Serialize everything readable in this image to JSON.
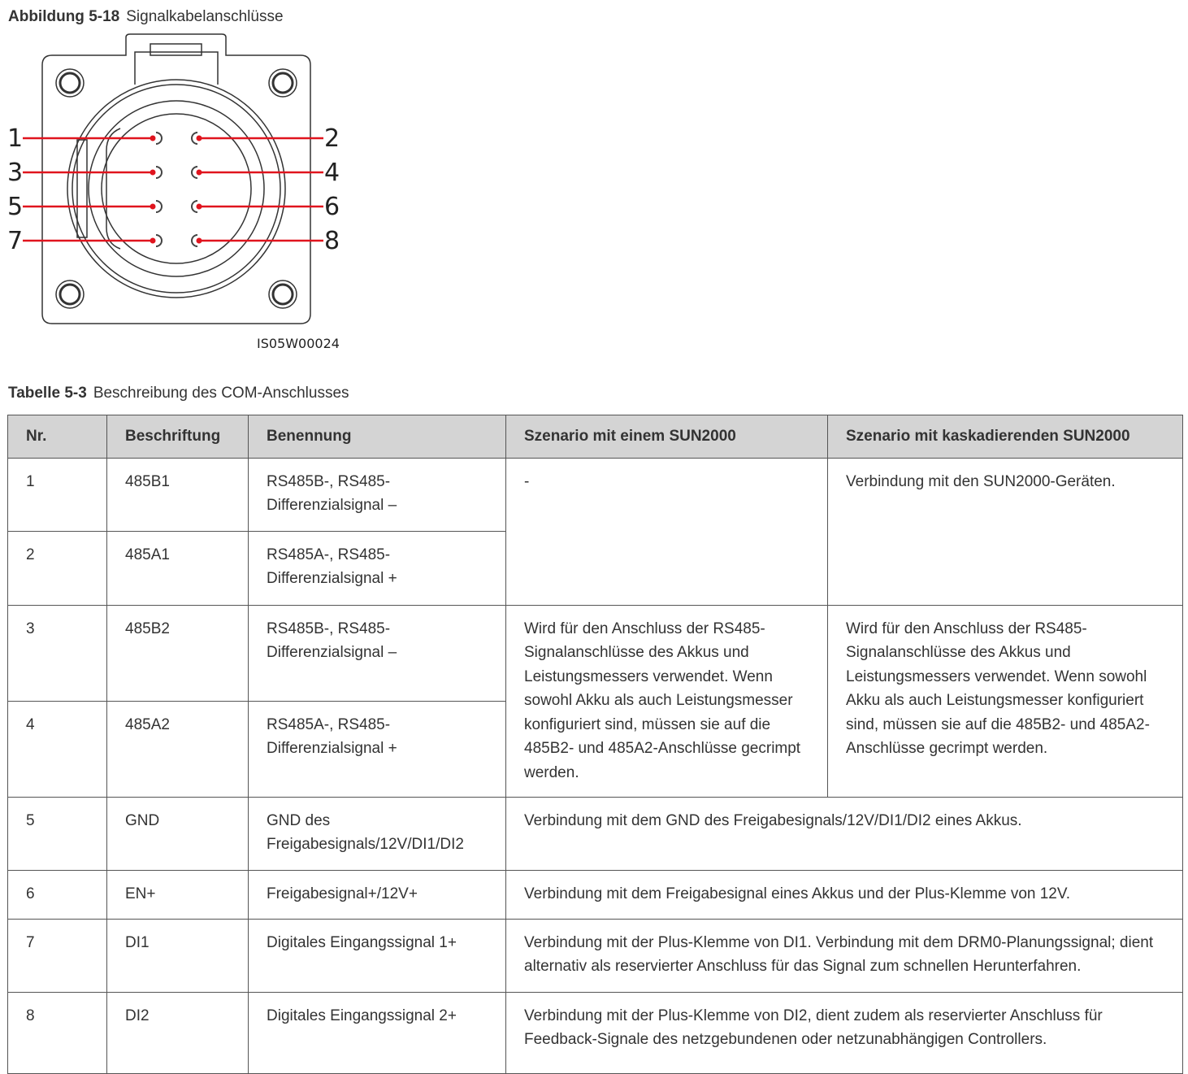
{
  "figure": {
    "label": "Abbildung 5-18",
    "title": "Signalkabelanschlüsse",
    "code": "IS05W00024",
    "pins_left": [
      "1",
      "3",
      "5",
      "7"
    ],
    "pins_right": [
      "2",
      "4",
      "6",
      "8"
    ],
    "line_color": "#e0141e"
  },
  "table": {
    "label": "Tabelle 5-3",
    "title": "Beschreibung des COM-Anschlusses",
    "headers": [
      "Nr.",
      "Beschriftung",
      "Benennung",
      "Szenario mit einem SUN2000",
      "Szenario mit kaskadierenden SUN2000"
    ],
    "rows": [
      {
        "nr": "1",
        "label": "485B1",
        "name": "RS485B-, RS485-Differenzialsignal –"
      },
      {
        "nr": "2",
        "label": "485A1",
        "name": "RS485A-, RS485-Differenzialsignal +"
      },
      {
        "nr": "3",
        "label": "485B2",
        "name": "RS485B-, RS485-Differenzialsignal –"
      },
      {
        "nr": "4",
        "label": "485A2",
        "name": "RS485A-, RS485-Differenzialsignal +"
      },
      {
        "nr": "5",
        "label": "GND",
        "name": "GND des Freigabesignals/12V/DI1/DI2"
      },
      {
        "nr": "6",
        "label": "EN+",
        "name": "Freigabesignal+/12V+"
      },
      {
        "nr": "7",
        "label": "DI1",
        "name": "Digitales Eingangssignal 1+"
      },
      {
        "nr": "8",
        "label": "DI2",
        "name": "Digitales Eingangssignal 2+"
      }
    ],
    "scenario": {
      "r12_single": "-",
      "r12_cascade": "Verbindung mit den SUN2000-Geräten.",
      "r34_single": "Wird für den Anschluss der RS485-Signalanschlüsse des Akkus und Leistungsmessers verwendet. Wenn sowohl Akku als auch Leistungsmesser konfiguriert sind, müssen sie auf die 485B2- und 485A2-Anschlüsse gecrimpt werden.",
      "r34_cascade": "Wird für den Anschluss der RS485-Signalanschlüsse des Akkus und Leistungsmessers verwendet. Wenn sowohl Akku als auch Leistungsmesser konfiguriert sind, müssen sie auf die 485B2- und 485A2-Anschlüsse gecrimpt werden.",
      "r5": "Verbindung mit dem GND des Freigabesignals/12V/DI1/DI2 eines Akkus.",
      "r6": "Verbindung mit dem Freigabesignal eines Akkus und der Plus-Klemme von 12V.",
      "r7": "Verbindung mit der Plus-Klemme von DI1. Verbindung mit dem DRM0-Planungssignal; dient alternativ als reservierter Anschluss für das Signal zum schnellen Herunterfahren.",
      "r8": "Verbindung mit der Plus-Klemme von DI2, dient zudem als reservierter Anschluss für Feedback-Signale des netzgebundenen oder netzunabhängigen Controllers."
    }
  }
}
